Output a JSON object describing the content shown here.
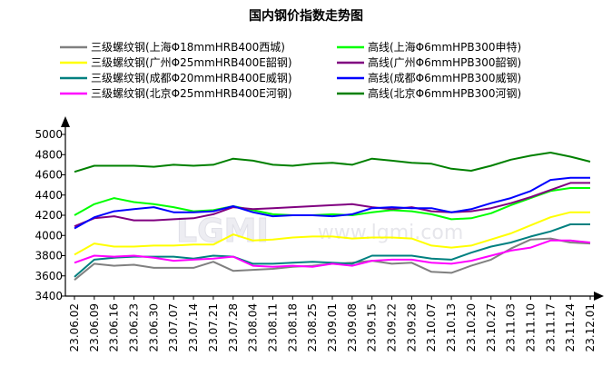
{
  "chart_data": {
    "type": "line",
    "title": "国内钢价指数走势图",
    "watermark": {
      "logo": "LGMI",
      "url": "www.lgmi.com"
    },
    "x": [
      "23.06.02",
      "23.06.09",
      "23.06.16",
      "23.06.23",
      "23.06.30",
      "23.07.07",
      "23.07.14",
      "23.07.21",
      "23.07.28",
      "23.08.04",
      "23.08.11",
      "23.08.18",
      "23.08.25",
      "23.09.01",
      "23.09.08",
      "23.09.15",
      "23.09.22",
      "23.09.28",
      "23.10.07",
      "23.10.13",
      "23.10.20",
      "23.10.27",
      "23.11.03",
      "23.11.10",
      "23.11.17",
      "23.11.24",
      "23.12.01"
    ],
    "ylim": [
      3400,
      5000
    ],
    "yticks": [
      3400,
      3600,
      3800,
      4000,
      4200,
      4400,
      4600,
      4800,
      5000
    ],
    "grid": false,
    "legend_position": "top",
    "series": [
      {
        "name": "三级螺纹钢(上海Φ18mmHRB400西城)",
        "color": "#808080",
        "values": [
          3560,
          3720,
          3700,
          3710,
          3680,
          3680,
          3680,
          3740,
          3650,
          3660,
          3670,
          3690,
          3700,
          3720,
          3730,
          3750,
          3720,
          3730,
          3640,
          3630,
          3700,
          3760,
          3870,
          3960,
          3970,
          3930,
          3920
        ]
      },
      {
        "name": "三级螺纹钢(广州Φ25mmHRB400E韶钢)",
        "color": "#ffff00",
        "values": [
          3810,
          3920,
          3890,
          3890,
          3900,
          3900,
          3910,
          3910,
          4010,
          3950,
          3960,
          3980,
          3990,
          3990,
          3970,
          3980,
          3980,
          3970,
          3900,
          3880,
          3900,
          3960,
          4020,
          4100,
          4180,
          4230,
          4230
        ]
      },
      {
        "name": "三级螺纹钢(成都Φ20mmHRB400E威钢)",
        "color": "#008080",
        "values": [
          3590,
          3760,
          3780,
          3790,
          3790,
          3790,
          3770,
          3800,
          3790,
          3720,
          3720,
          3730,
          3740,
          3730,
          3720,
          3800,
          3800,
          3800,
          3770,
          3760,
          3830,
          3890,
          3930,
          3990,
          4040,
          4110,
          4110
        ]
      },
      {
        "name": "三级螺纹钢(北京Φ25mmHRB400E河钢)",
        "color": "#ff00ff",
        "values": [
          3730,
          3800,
          3790,
          3800,
          3780,
          3750,
          3760,
          3770,
          3790,
          3700,
          3690,
          3700,
          3690,
          3720,
          3700,
          3750,
          3760,
          3760,
          3730,
          3720,
          3750,
          3800,
          3850,
          3880,
          3950,
          3950,
          3930
        ]
      },
      {
        "name": "高线(上海Φ6mmHPB300申特)",
        "color": "#00ff00",
        "values": [
          4200,
          4310,
          4370,
          4330,
          4310,
          4280,
          4240,
          4250,
          4290,
          4250,
          4210,
          4200,
          4200,
          4210,
          4200,
          4230,
          4250,
          4240,
          4210,
          4160,
          4170,
          4220,
          4300,
          4370,
          4440,
          4470,
          4470
        ]
      },
      {
        "name": "高线(广州Φ6mmHPB300韶钢)",
        "color": "#800080",
        "values": [
          4090,
          4170,
          4190,
          4150,
          4150,
          4160,
          4170,
          4210,
          4280,
          4260,
          4270,
          4280,
          4290,
          4300,
          4310,
          4280,
          4260,
          4280,
          4240,
          4230,
          4240,
          4270,
          4320,
          4380,
          4450,
          4520,
          4520
        ]
      },
      {
        "name": "高线(成都Φ6mmHPB300威钢)",
        "color": "#0000ff",
        "values": [
          4070,
          4180,
          4240,
          4260,
          4280,
          4230,
          4230,
          4240,
          4290,
          4230,
          4190,
          4200,
          4200,
          4190,
          4210,
          4270,
          4280,
          4270,
          4270,
          4230,
          4260,
          4320,
          4370,
          4440,
          4550,
          4570,
          4570
        ]
      },
      {
        "name": "高线(北京Φ6mmHPB300河钢)",
        "color": "#008000",
        "values": [
          4630,
          4690,
          4690,
          4690,
          4680,
          4700,
          4690,
          4700,
          4760,
          4740,
          4700,
          4690,
          4710,
          4720,
          4700,
          4760,
          4740,
          4720,
          4710,
          4660,
          4640,
          4690,
          4750,
          4790,
          4820,
          4780,
          4730
        ]
      }
    ]
  }
}
